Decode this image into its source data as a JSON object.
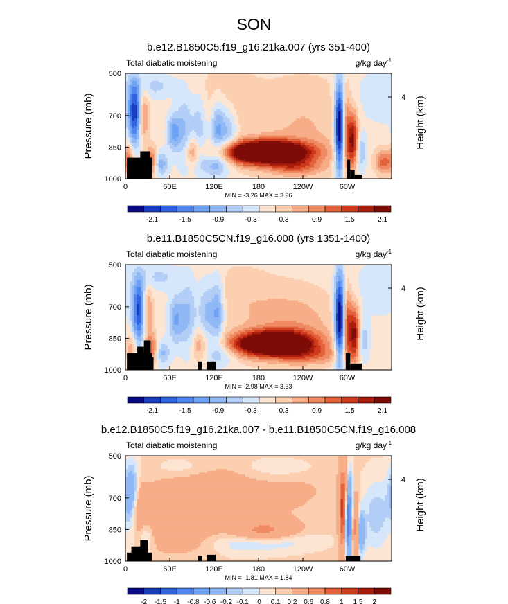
{
  "figure": {
    "title": "SON"
  },
  "chart_data": [
    {
      "type": "heatmap",
      "title": "b.e12.B1850C5.f19_g16.21ka.007 (yrs 351-400)",
      "left_label": "Total diabatic moistening",
      "right_label": "g/kg day",
      "right_label_exp": "-1",
      "xlabel": "",
      "ylabel": "Pressure (mb)",
      "y2label": "Height (km)",
      "y2_ticks": [
        "4"
      ],
      "x_ticks": [
        "0",
        "60E",
        "120E",
        "180",
        "120W",
        "60W"
      ],
      "x_tick_lons": [
        0,
        60,
        120,
        180,
        240,
        300
      ],
      "xlim": [
        0,
        360
      ],
      "y_ticks": [
        "500",
        "700",
        "850",
        "1000"
      ],
      "y_tick_values": [
        500,
        700,
        850,
        1000
      ],
      "ylim": [
        500,
        1000
      ],
      "min_label": "MIN = -3.26",
      "max_label": "MAX =  3.96",
      "colorbar_labels": [
        "-2.1",
        "-1.5",
        "-0.9",
        "-0.3",
        "0.3",
        "0.9",
        "1.5",
        "2.1"
      ],
      "features": [
        {
          "lon": 195,
          "p": 870,
          "amp": 3.4,
          "wl": 38,
          "wp": 35
        },
        {
          "lon": 170,
          "p": 890,
          "amp": 1.0,
          "wl": 35,
          "wp": 40
        },
        {
          "lon": 240,
          "p": 760,
          "amp": 0.5,
          "wl": 55,
          "wp": 180
        },
        {
          "lon": 230,
          "p": 940,
          "amp": 1.0,
          "wl": 25,
          "wp": 30
        },
        {
          "lon": 130,
          "p": 620,
          "amp": 0.4,
          "wl": 30,
          "wp": 120
        },
        {
          "lon": 12,
          "p": 690,
          "amp": -2.0,
          "wl": 6,
          "wp": 110
        },
        {
          "lon": 25,
          "p": 700,
          "amp": 0.9,
          "wl": 5,
          "wp": 90
        },
        {
          "lon": 5,
          "p": 900,
          "amp": 0.9,
          "wl": 5,
          "wp": 50
        },
        {
          "lon": 35,
          "p": 920,
          "amp": 1.3,
          "wl": 5,
          "wp": 50
        },
        {
          "lon": 48,
          "p": 930,
          "amp": -0.9,
          "wl": 7,
          "wp": 40
        },
        {
          "lon": 65,
          "p": 780,
          "amp": -1.1,
          "wl": 6,
          "wp": 60
        },
        {
          "lon": 80,
          "p": 760,
          "amp": -0.8,
          "wl": 8,
          "wp": 120
        },
        {
          "lon": 100,
          "p": 740,
          "amp": -0.7,
          "wl": 7,
          "wp": 120
        },
        {
          "lon": 125,
          "p": 760,
          "amp": -1.2,
          "wl": 7,
          "wp": 100
        },
        {
          "lon": 140,
          "p": 770,
          "amp": -0.8,
          "wl": 8,
          "wp": 90
        },
        {
          "lon": 120,
          "p": 930,
          "amp": -0.9,
          "wl": 15,
          "wp": 40
        },
        {
          "lon": 90,
          "p": 870,
          "amp": 0.8,
          "wl": 6,
          "wp": 50
        },
        {
          "lon": 290,
          "p": 760,
          "amp": -3.0,
          "wl": 5,
          "wp": 150
        },
        {
          "lon": 298,
          "p": 760,
          "amp": 1.2,
          "wl": 4,
          "wp": 140
        },
        {
          "lon": 308,
          "p": 820,
          "amp": 2.0,
          "wl": 5,
          "wp": 90
        },
        {
          "lon": 318,
          "p": 870,
          "amp": -0.9,
          "wl": 6,
          "wp": 70
        },
        {
          "lon": 350,
          "p": 920,
          "amp": 1.2,
          "wl": 8,
          "wp": 40
        },
        {
          "lon": 340,
          "p": 620,
          "amp": -0.4,
          "wl": 25,
          "wp": 100
        },
        {
          "lon": 40,
          "p": 560,
          "amp": -0.5,
          "wl": 20,
          "wp": 40
        }
      ],
      "topography": [
        {
          "lon0": 2,
          "lon1": 36,
          "p_top": 900
        },
        {
          "lon0": 2,
          "lon1": 8,
          "p_top": 930
        },
        {
          "lon0": 8,
          "lon1": 14,
          "p_top": 960
        },
        {
          "lon0": 14,
          "lon1": 20,
          "p_top": 920
        },
        {
          "lon0": 20,
          "lon1": 33,
          "p_top": 870
        },
        {
          "lon0": 300,
          "lon1": 304,
          "p_top": 910
        },
        {
          "lon0": 304,
          "lon1": 310,
          "p_top": 960
        },
        {
          "lon0": 310,
          "lon1": 320,
          "p_top": 980
        }
      ]
    },
    {
      "type": "heatmap",
      "title": "b.e11.B1850C5CN.f19_g16.008 (yrs 1351-1400)",
      "left_label": "Total diabatic moistening",
      "right_label": "g/kg day",
      "right_label_exp": "-1",
      "xlabel": "",
      "ylabel": "Pressure (mb)",
      "y2label": "Height (km)",
      "y2_ticks": [
        "4"
      ],
      "x_ticks": [
        "0",
        "60E",
        "120E",
        "180",
        "120W",
        "60W"
      ],
      "x_tick_lons": [
        0,
        60,
        120,
        180,
        240,
        300
      ],
      "xlim": [
        0,
        360
      ],
      "y_ticks": [
        "500",
        "700",
        "850",
        "1000"
      ],
      "y_tick_values": [
        500,
        700,
        850,
        1000
      ],
      "ylim": [
        500,
        1000
      ],
      "min_label": "MIN = -2.98",
      "max_label": "MAX =  3.33",
      "colorbar_labels": [
        "-2.1",
        "-1.5",
        "-0.9",
        "-0.3",
        "0.3",
        "0.9",
        "1.5",
        "2.1"
      ],
      "features": [
        {
          "lon": 205,
          "p": 870,
          "amp": 3.0,
          "wl": 35,
          "wp": 38
        },
        {
          "lon": 175,
          "p": 890,
          "amp": 1.0,
          "wl": 35,
          "wp": 40
        },
        {
          "lon": 225,
          "p": 790,
          "amp": 0.7,
          "wl": 45,
          "wp": 130
        },
        {
          "lon": 250,
          "p": 930,
          "amp": 0.8,
          "wl": 30,
          "wp": 30
        },
        {
          "lon": 150,
          "p": 640,
          "amp": 0.3,
          "wl": 35,
          "wp": 120
        },
        {
          "lon": 18,
          "p": 720,
          "amp": -2.0,
          "wl": 6,
          "wp": 110
        },
        {
          "lon": 30,
          "p": 720,
          "amp": 0.9,
          "wl": 5,
          "wp": 90
        },
        {
          "lon": 35,
          "p": 900,
          "amp": 1.2,
          "wl": 6,
          "wp": 50
        },
        {
          "lon": 8,
          "p": 900,
          "amp": 0.7,
          "wl": 5,
          "wp": 50
        },
        {
          "lon": 50,
          "p": 920,
          "amp": -0.8,
          "wl": 7,
          "wp": 40
        },
        {
          "lon": 68,
          "p": 760,
          "amp": -1.0,
          "wl": 7,
          "wp": 80
        },
        {
          "lon": 85,
          "p": 740,
          "amp": -0.8,
          "wl": 8,
          "wp": 120
        },
        {
          "lon": 110,
          "p": 730,
          "amp": -0.9,
          "wl": 8,
          "wp": 110
        },
        {
          "lon": 125,
          "p": 720,
          "amp": -1.1,
          "wl": 6,
          "wp": 110
        },
        {
          "lon": 100,
          "p": 880,
          "amp": 0.7,
          "wl": 7,
          "wp": 60
        },
        {
          "lon": 130,
          "p": 920,
          "amp": -0.7,
          "wl": 15,
          "wp": 40
        },
        {
          "lon": 290,
          "p": 760,
          "amp": -2.8,
          "wl": 5,
          "wp": 150
        },
        {
          "lon": 300,
          "p": 780,
          "amp": 1.3,
          "wl": 4,
          "wp": 130
        },
        {
          "lon": 310,
          "p": 830,
          "amp": 2.0,
          "wl": 5,
          "wp": 90
        },
        {
          "lon": 322,
          "p": 860,
          "amp": -0.7,
          "wl": 6,
          "wp": 70
        },
        {
          "lon": 340,
          "p": 620,
          "amp": -0.3,
          "wl": 25,
          "wp": 100
        },
        {
          "lon": 45,
          "p": 560,
          "amp": -0.5,
          "wl": 20,
          "wp": 40
        }
      ],
      "topography": [
        {
          "lon0": 2,
          "lon1": 36,
          "p_top": 920
        },
        {
          "lon0": 16,
          "lon1": 25,
          "p_top": 890
        },
        {
          "lon0": 25,
          "lon1": 34,
          "p_top": 860
        },
        {
          "lon0": 34,
          "lon1": 38,
          "p_top": 940
        },
        {
          "lon0": 98,
          "lon1": 104,
          "p_top": 960
        },
        {
          "lon0": 110,
          "lon1": 122,
          "p_top": 960
        },
        {
          "lon0": 298,
          "lon1": 304,
          "p_top": 920
        },
        {
          "lon0": 304,
          "lon1": 320,
          "p_top": 970
        }
      ]
    },
    {
      "type": "heatmap",
      "title": "b.e12.B1850C5.f19_g16.21ka.007 - b.e11.B1850C5CN.f19_g16.008",
      "left_label": "Total diabatic moistening",
      "right_label": "g/kg day",
      "right_label_exp": "-1",
      "xlabel": "",
      "ylabel": "Pressure (mb)",
      "y2label": "Height (km)",
      "y2_ticks": [
        "4"
      ],
      "x_ticks": [
        "0",
        "60E",
        "120E",
        "180",
        "120W",
        "60W"
      ],
      "x_tick_lons": [
        0,
        60,
        120,
        180,
        240,
        300
      ],
      "xlim": [
        0,
        360
      ],
      "y_ticks": [
        "500",
        "700",
        "850",
        "1000"
      ],
      "y_tick_values": [
        500,
        700,
        850,
        1000
      ],
      "ylim": [
        500,
        1000
      ],
      "min_label": "MIN = -1.81",
      "max_label": "MAX =  1.84",
      "colorbar_labels": [
        "-2",
        "-1.5",
        "-1",
        "-0.8",
        "-0.6",
        "-0.2",
        "-0.1",
        "0",
        "0.1",
        "0.2",
        "0.6",
        "0.8",
        "1",
        "1.5",
        "2"
      ],
      "features": [
        {
          "lon": 185,
          "p": 860,
          "amp": 0.7,
          "wl": 30,
          "wp": 35
        },
        {
          "lon": 195,
          "p": 900,
          "amp": -0.3,
          "wl": 40,
          "wp": 35
        },
        {
          "lon": 110,
          "p": 720,
          "amp": 0.35,
          "wl": 50,
          "wp": 120
        },
        {
          "lon": 60,
          "p": 820,
          "amp": 0.3,
          "wl": 30,
          "wp": 80
        },
        {
          "lon": 8,
          "p": 680,
          "amp": -0.6,
          "wl": 8,
          "wp": 100
        },
        {
          "lon": 18,
          "p": 760,
          "amp": 0.4,
          "wl": 6,
          "wp": 100
        },
        {
          "lon": 25,
          "p": 870,
          "amp": -0.3,
          "wl": 10,
          "wp": 60
        },
        {
          "lon": 150,
          "p": 880,
          "amp": -0.2,
          "wl": 30,
          "wp": 60
        },
        {
          "lon": 230,
          "p": 650,
          "amp": 0.1,
          "wl": 40,
          "wp": 100
        },
        {
          "lon": 295,
          "p": 760,
          "amp": 1.2,
          "wl": 4,
          "wp": 150
        },
        {
          "lon": 302,
          "p": 800,
          "amp": -1.5,
          "wl": 4,
          "wp": 130
        },
        {
          "lon": 310,
          "p": 840,
          "amp": 0.8,
          "wl": 4,
          "wp": 100
        },
        {
          "lon": 318,
          "p": 870,
          "amp": -0.6,
          "wl": 4,
          "wp": 70
        },
        {
          "lon": 340,
          "p": 780,
          "amp": -0.3,
          "wl": 15,
          "wp": 120
        },
        {
          "lon": 80,
          "p": 560,
          "amp": -0.15,
          "wl": 30,
          "wp": 40
        },
        {
          "lon": 205,
          "p": 560,
          "amp": -0.15,
          "wl": 40,
          "wp": 40
        }
      ],
      "topography": [
        {
          "lon0": 2,
          "lon1": 36,
          "p_top": 960
        },
        {
          "lon0": 8,
          "lon1": 30,
          "p_top": 930
        },
        {
          "lon0": 20,
          "lon1": 30,
          "p_top": 900
        },
        {
          "lon0": 98,
          "lon1": 104,
          "p_top": 975
        },
        {
          "lon0": 110,
          "lon1": 122,
          "p_top": 970
        },
        {
          "lon0": 298,
          "lon1": 318,
          "p_top": 975
        }
      ]
    }
  ]
}
